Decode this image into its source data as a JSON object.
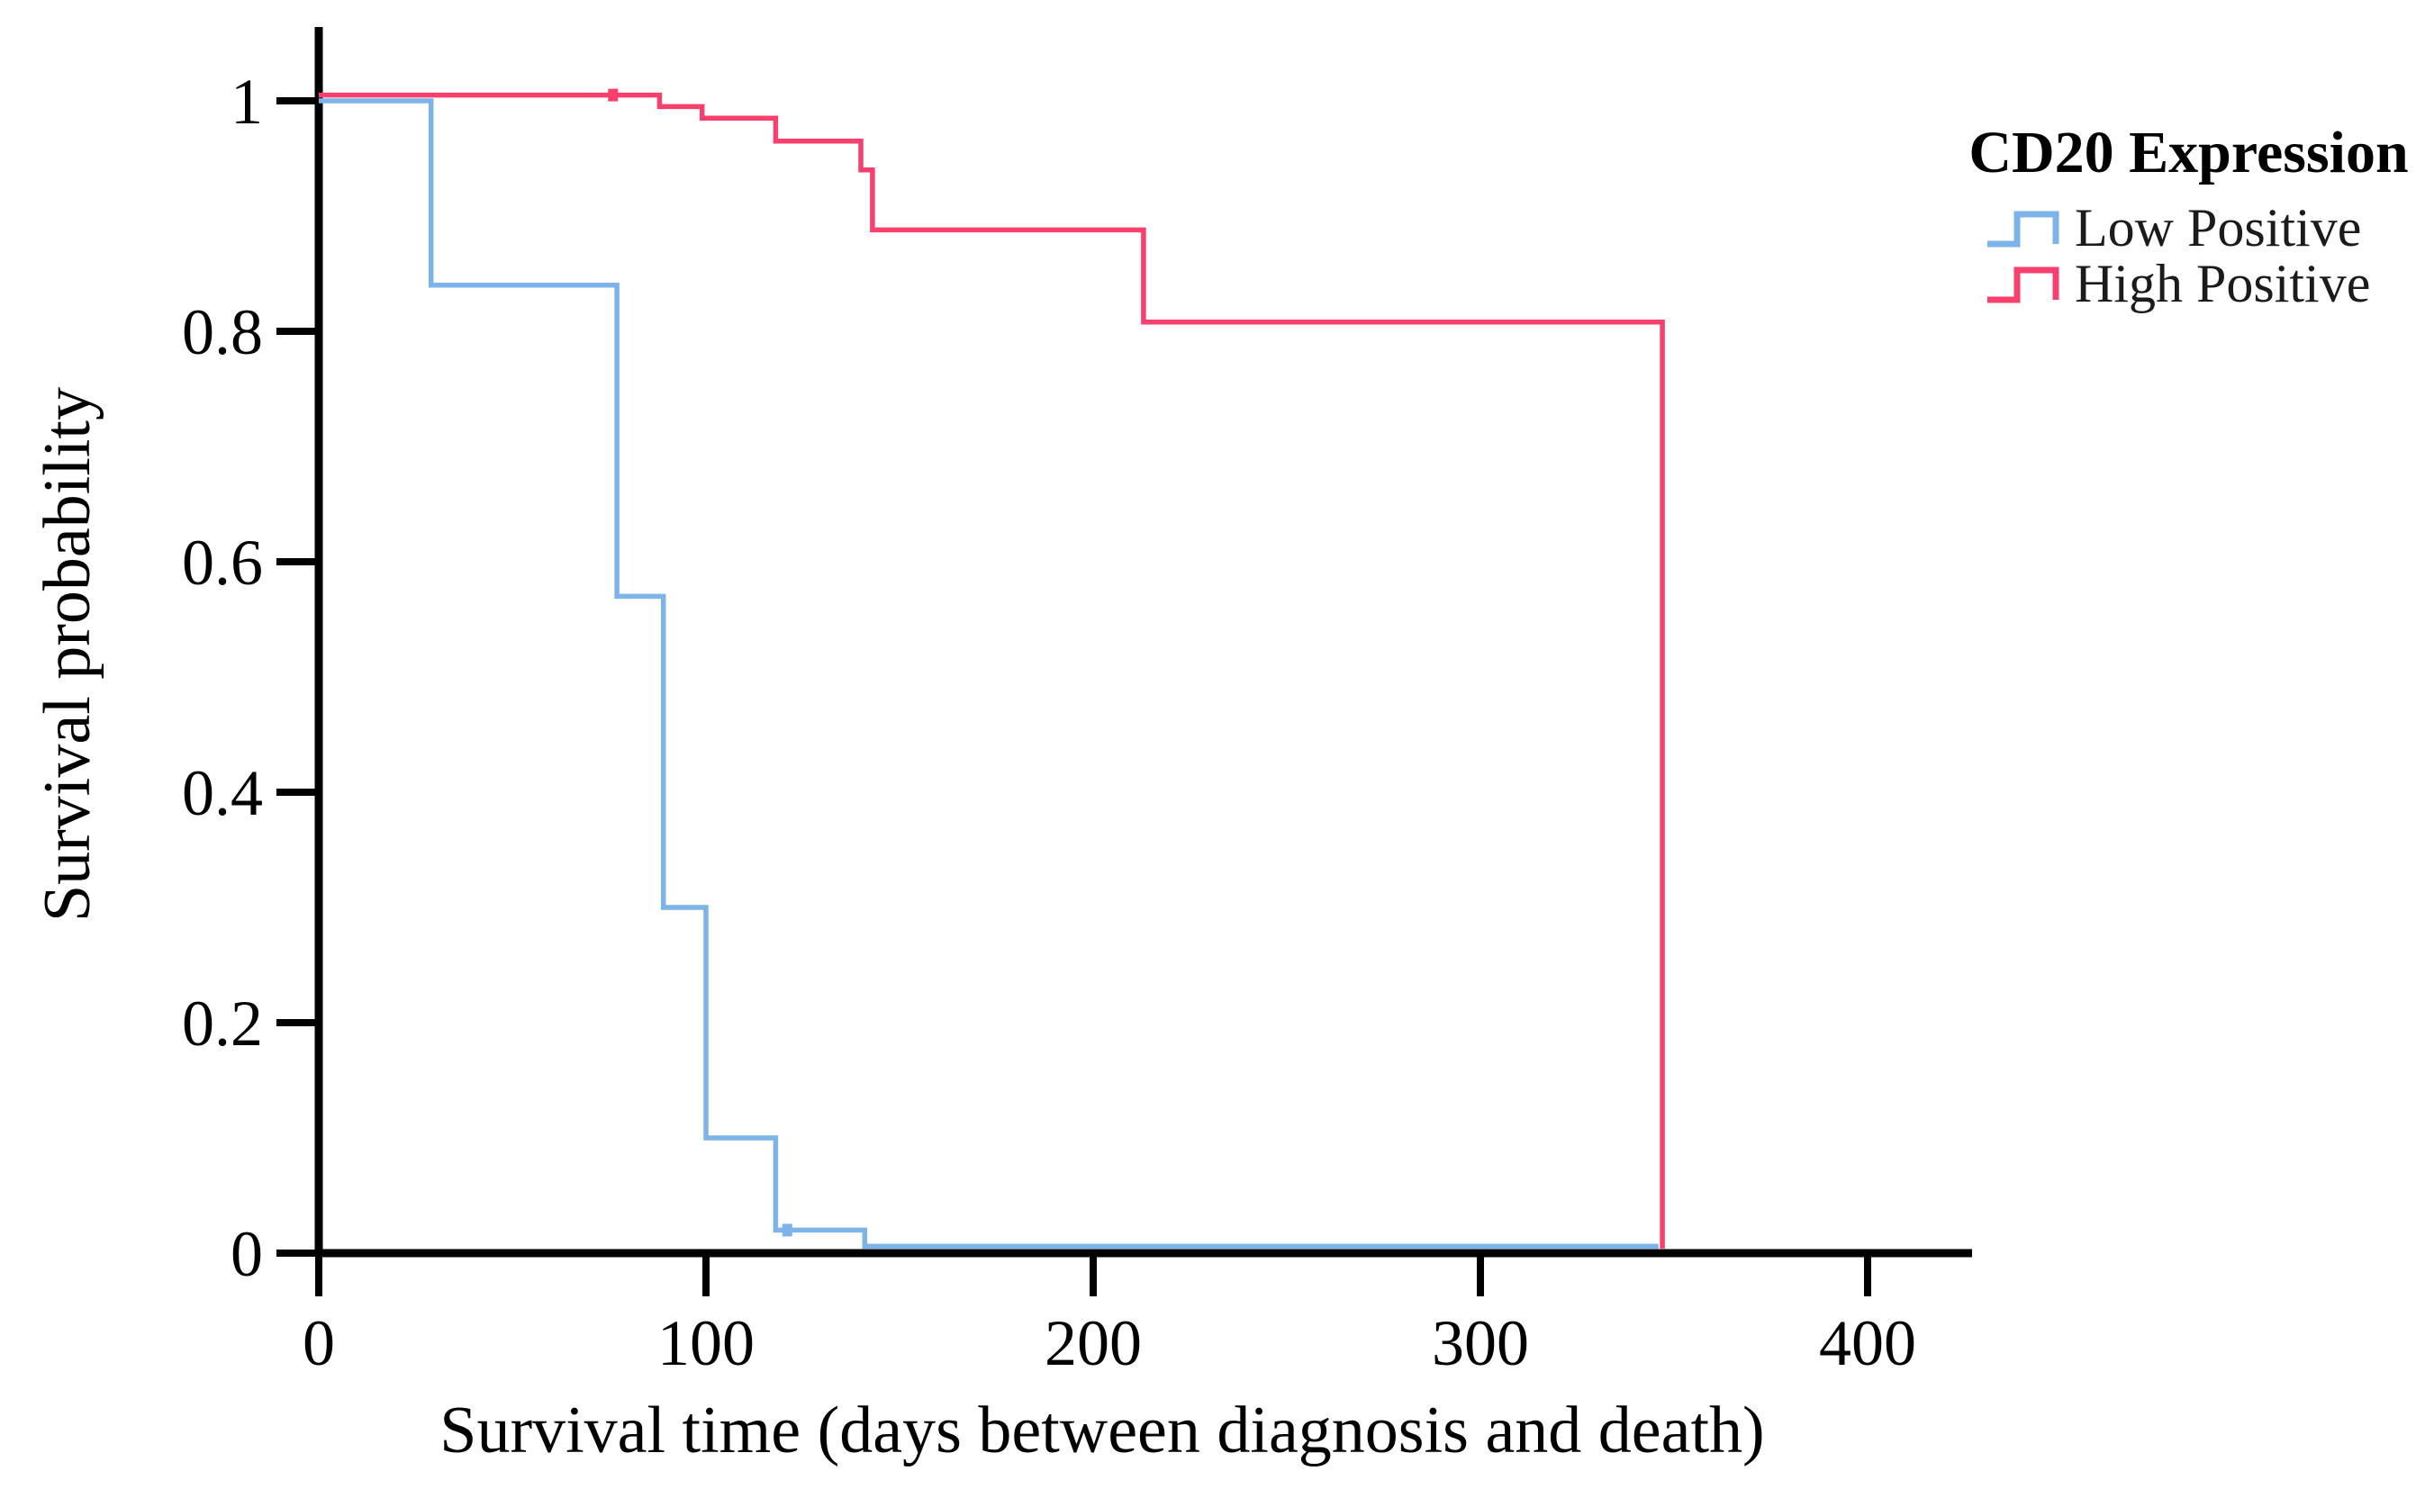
{
  "figure": {
    "background": "#ffffff",
    "axis_color": "#000000",
    "text_color": "#1b1b1b"
  },
  "chart_data": {
    "type": "line",
    "subtype": "kaplan_meier_step",
    "title": "",
    "xlabel": "Survival time (days between diagnosis and death)",
    "ylabel": "Survival probability",
    "xlim": [
      0,
      427
    ],
    "ylim": [
      0,
      1.05
    ],
    "grid": false,
    "x_ticks": [
      0,
      100,
      200,
      300,
      400
    ],
    "x_tick_labels": [
      "0",
      "100",
      "200",
      "300",
      "400"
    ],
    "y_ticks": [
      0,
      0.2,
      0.4,
      0.6,
      0.8,
      1
    ],
    "y_tick_labels": [
      "0",
      "0.2",
      "0.4",
      "0.6",
      "0.8",
      "1"
    ],
    "legend": {
      "title": "CD20 Expression",
      "position": "right-of-plot-top",
      "entries": [
        {
          "label": "Low Positive",
          "color": "#7CB3E9"
        },
        {
          "label": "High Positive",
          "color": "#F8406E"
        }
      ]
    },
    "series": [
      {
        "name": "Low Positive",
        "color": "#7CB3E9",
        "steps": [
          [
            0,
            1.0
          ],
          [
            29,
            0.84
          ],
          [
            77,
            0.57
          ],
          [
            89,
            0.3
          ],
          [
            100,
            0.1
          ],
          [
            118,
            0.02
          ],
          [
            141,
            0.006
          ]
        ],
        "end_t": 346
      },
      {
        "name": "High Positive",
        "color": "#F8406E",
        "steps": [
          [
            0,
            1.005
          ],
          [
            88,
            0.995
          ],
          [
            99,
            0.985
          ],
          [
            118,
            0.965
          ],
          [
            140,
            0.94
          ],
          [
            143,
            0.888
          ],
          [
            213,
            0.808
          ],
          [
            347,
            0.004
          ]
        ],
        "end_t": 347
      }
    ],
    "censor_marks": [
      {
        "series": "High Positive",
        "t": 76
      },
      {
        "series": "Low Positive",
        "t": 121
      }
    ]
  }
}
